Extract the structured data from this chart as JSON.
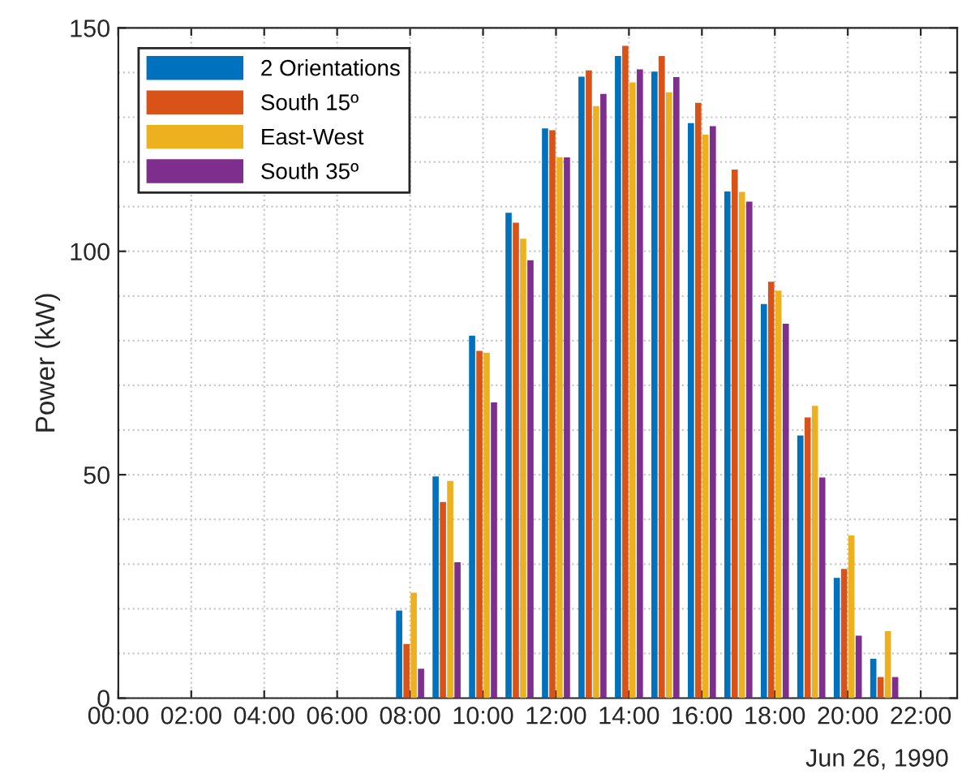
{
  "chart_data": {
    "type": "bar",
    "ylabel": "Power (kW)",
    "x": [
      "1990-06-26T08:00",
      "1990-06-26T09:00",
      "1990-06-26T10:00",
      "1990-06-26T11:00",
      "1990-06-26T12:00",
      "1990-06-26T13:00",
      "1990-06-26T14:00",
      "1990-06-26T15:00",
      "1990-06-26T16:00",
      "1990-06-26T17:00",
      "1990-06-26T18:00",
      "1990-06-26T19:00",
      "1990-06-26T20:00",
      "1990-06-26T21:00"
    ],
    "series": [
      {
        "name": "2 Orientations",
        "color": "#0072bd",
        "values": [
          19.6,
          49.6,
          81.1,
          108.6,
          127.5,
          139.1,
          143.7,
          140.2,
          128.7,
          113.4,
          88.2,
          58.8,
          26.9,
          8.8
        ]
      },
      {
        "name": "South 15º",
        "color": "#d95319",
        "values": [
          12.1,
          43.9,
          77.7,
          106.4,
          127.1,
          140.5,
          146,
          143.7,
          133.2,
          118.3,
          93.2,
          62.8,
          28.9,
          4.7
        ]
      },
      {
        "name": "East-West",
        "color": "#edb120",
        "values": [
          23.6,
          48.6,
          77.3,
          102.8,
          121,
          132.5,
          137.8,
          135.6,
          126.1,
          113.3,
          91.2,
          65.4,
          36.4,
          15
        ]
      },
      {
        "name": "South 35º",
        "color": "#7e2f8e",
        "values": [
          6.6,
          30.4,
          66.2,
          98,
          121,
          135.2,
          140.7,
          139,
          128,
          111.1,
          83.8,
          49.4,
          14,
          4.7
        ]
      }
    ],
    "xlim": [
      "1990-06-26T00:00",
      "1990-06-26T23:00"
    ],
    "xticks": [
      {
        "value": "1990-06-26T00:00",
        "label": "00:00"
      },
      {
        "value": "1990-06-26T02:00",
        "label": "02:00"
      },
      {
        "value": "1990-06-26T04:00",
        "label": "04:00"
      },
      {
        "value": "1990-06-26T06:00",
        "label": "06:00"
      },
      {
        "value": "1990-06-26T08:00",
        "label": "08:00"
      },
      {
        "value": "1990-06-26T10:00",
        "label": "10:00"
      },
      {
        "value": "1990-06-26T12:00",
        "label": "12:00"
      },
      {
        "value": "1990-06-26T14:00",
        "label": "14:00"
      },
      {
        "value": "1990-06-26T16:00",
        "label": "16:00"
      },
      {
        "value": "1990-06-26T18:00",
        "label": "18:00"
      },
      {
        "value": "1990-06-26T20:00",
        "label": "20:00"
      },
      {
        "value": "1990-06-26T22:00",
        "label": "22:00"
      }
    ],
    "ylim": [
      0,
      150
    ],
    "yticks": [
      0,
      {
        "value": 10,
        "label": null
      },
      {
        "value": 20,
        "label": null
      },
      {
        "value": 30,
        "label": null
      },
      {
        "value": 40,
        "label": null
      },
      50,
      {
        "value": 60,
        "label": null
      },
      {
        "value": 70,
        "label": null
      },
      {
        "value": 80,
        "label": null
      },
      {
        "value": 90,
        "label": null
      },
      100,
      {
        "value": 110,
        "label": null
      },
      {
        "value": 120,
        "label": null
      },
      {
        "value": 130,
        "label": null
      },
      {
        "value": 140,
        "label": null
      },
      150
    ],
    "annotations": [
      "Jun 26, 1990"
    ],
    "grid": true,
    "legend": "top left"
  }
}
